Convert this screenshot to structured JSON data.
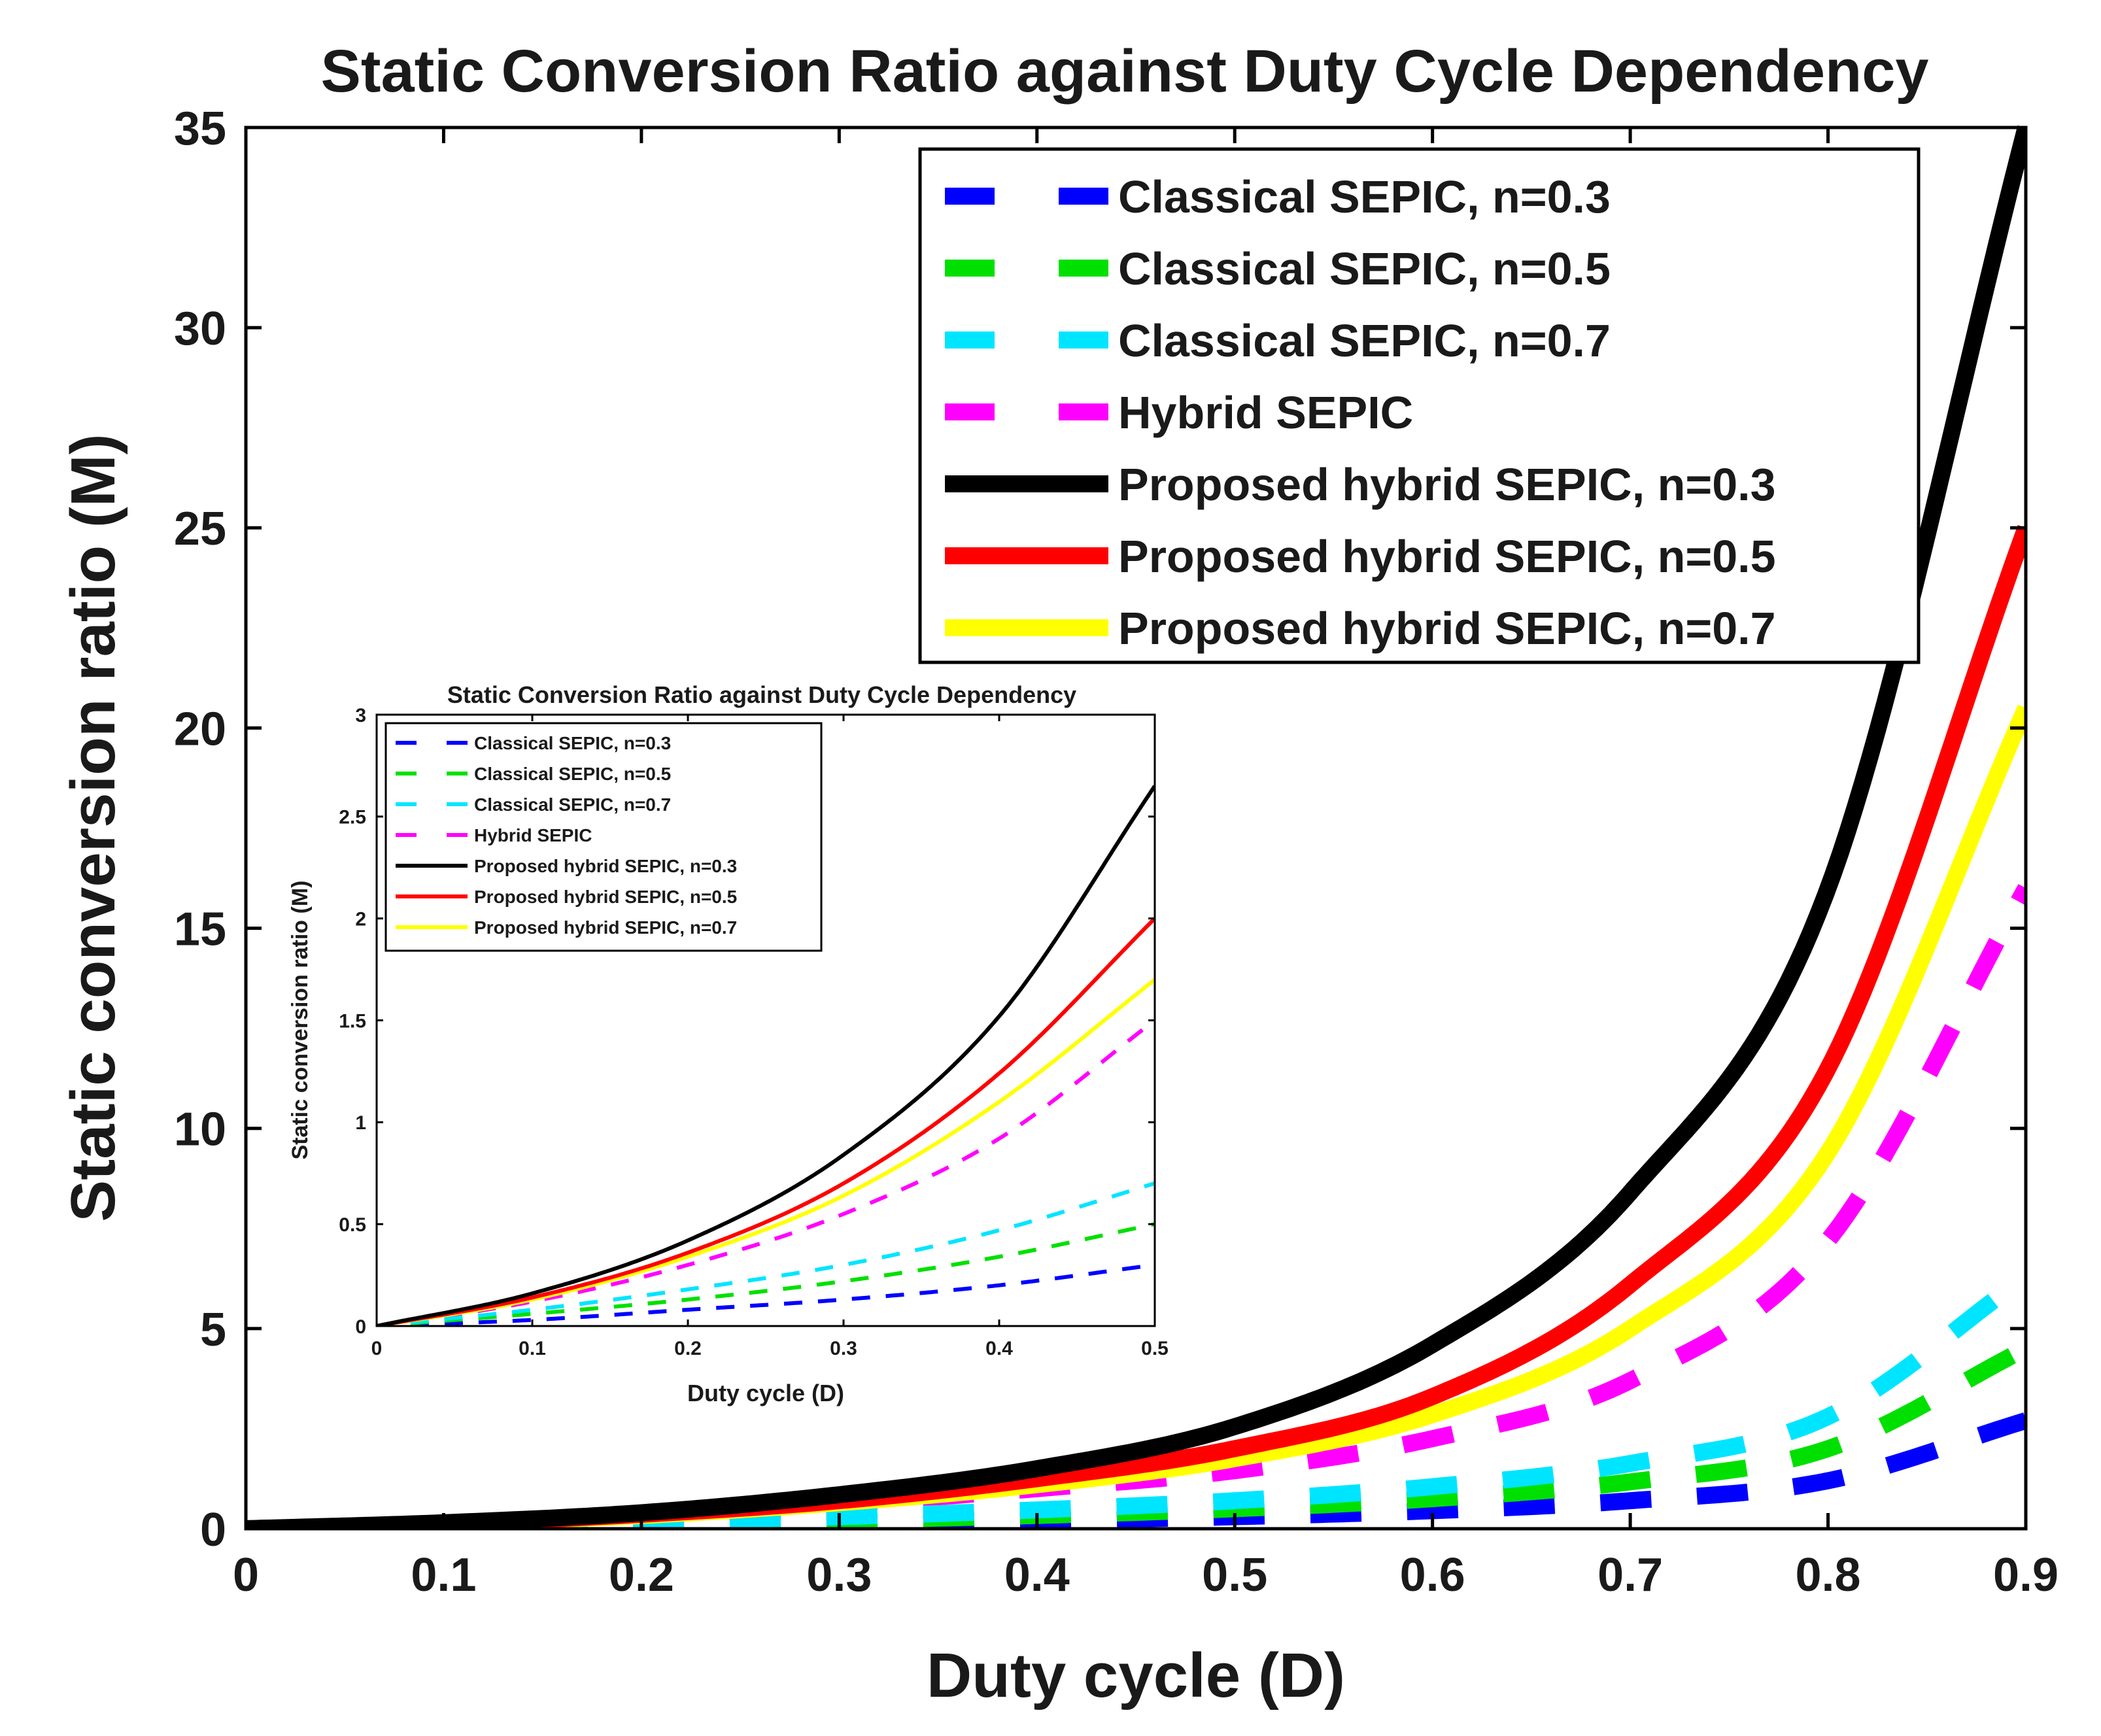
{
  "chart_data": [
    {
      "id": "main",
      "type": "line",
      "title": "Static Conversion Ratio against Duty Cycle Dependency",
      "xlabel": "Duty cycle (D)",
      "ylabel": "Static conversion ratio (M)",
      "xlim": [
        0,
        0.9
      ],
      "ylim": [
        0,
        35
      ],
      "xticks": [
        0,
        0.1,
        0.2,
        0.3,
        0.4,
        0.5,
        0.6,
        0.7,
        0.8,
        0.9
      ],
      "xtick_labels": [
        "0",
        "0.1",
        "0.2",
        "0.3",
        "0.4",
        "0.5",
        "0.6",
        "0.7",
        "0.8",
        "0.9"
      ],
      "yticks": [
        0,
        5,
        10,
        15,
        20,
        25,
        30,
        35
      ],
      "ytick_labels": [
        "0",
        "5",
        "10",
        "15",
        "20",
        "25",
        "30",
        "35"
      ],
      "grid": false,
      "legend_position": "top-right",
      "series": [
        {
          "name": "Classical SEPIC, n=0.3",
          "color": "#0000ff",
          "style": "dashed",
          "x": [
            0.0,
            0.1,
            0.2,
            0.3,
            0.4,
            0.5,
            0.6,
            0.7,
            0.8,
            0.9
          ],
          "values": [
            0.0,
            0.03,
            0.08,
            0.13,
            0.2,
            0.3,
            0.45,
            0.7,
            1.2,
            2.7
          ]
        },
        {
          "name": "Classical SEPIC, n=0.5",
          "color": "#00e000",
          "style": "dashed",
          "x": [
            0.0,
            0.1,
            0.2,
            0.3,
            0.4,
            0.5,
            0.6,
            0.7,
            0.8,
            0.9
          ],
          "values": [
            0.0,
            0.06,
            0.13,
            0.21,
            0.33,
            0.5,
            0.75,
            1.17,
            2.0,
            4.5
          ]
        },
        {
          "name": "Classical SEPIC, n=0.7",
          "color": "#00e5ff",
          "style": "dashed",
          "x": [
            0.0,
            0.1,
            0.2,
            0.3,
            0.4,
            0.5,
            0.6,
            0.7,
            0.8,
            0.9
          ],
          "values": [
            0.0,
            0.08,
            0.18,
            0.3,
            0.47,
            0.7,
            1.05,
            1.63,
            2.8,
            6.3
          ]
        },
        {
          "name": "Hybrid SEPIC",
          "color": "#ff00ff",
          "style": "dashed",
          "x": [
            0.0,
            0.1,
            0.2,
            0.3,
            0.4,
            0.5,
            0.6,
            0.7,
            0.8,
            0.9
          ],
          "values": [
            0.0,
            0.12,
            0.31,
            0.61,
            1.0,
            1.45,
            2.25,
            3.7,
            7.2,
            16.0
          ]
        },
        {
          "name": "Proposed hybrid SEPIC, n=0.3",
          "color": "#000000",
          "style": "solid",
          "x": [
            0.0,
            0.1,
            0.2,
            0.3,
            0.4,
            0.5,
            0.6,
            0.7,
            0.8,
            0.9
          ],
          "values": [
            0.0,
            0.15,
            0.4,
            0.85,
            1.5,
            2.55,
            4.6,
            8.4,
            16.0,
            35.0
          ]
        },
        {
          "name": "Proposed hybrid SEPIC, n=0.5",
          "color": "#ff0000",
          "style": "solid",
          "x": [
            0.0,
            0.1,
            0.2,
            0.3,
            0.4,
            0.5,
            0.6,
            0.7,
            0.8,
            0.9
          ],
          "values": [
            0.0,
            0.13,
            0.36,
            0.7,
            1.25,
            2.0,
            3.3,
            6.1,
            11.5,
            25.0
          ]
        },
        {
          "name": "Proposed hybrid SEPIC, n=0.7",
          "color": "#ffff00",
          "style": "solid",
          "x": [
            0.0,
            0.1,
            0.2,
            0.3,
            0.4,
            0.5,
            0.6,
            0.7,
            0.8,
            0.9
          ],
          "values": [
            0.0,
            0.12,
            0.33,
            0.65,
            1.1,
            1.75,
            2.85,
            5.0,
            9.4,
            20.5
          ]
        }
      ]
    },
    {
      "id": "inset",
      "type": "line",
      "title": "Static Conversion Ratio against Duty Cycle Dependency",
      "xlabel": "Duty cycle (D)",
      "ylabel": "Static conversion ratio (M)",
      "xlim": [
        0,
        0.5
      ],
      "ylim": [
        0,
        3
      ],
      "xticks": [
        0,
        0.1,
        0.2,
        0.3,
        0.4,
        0.5
      ],
      "xtick_labels": [
        "0",
        "0.1",
        "0.2",
        "0.3",
        "0.4",
        "0.5"
      ],
      "yticks": [
        0,
        0.5,
        1,
        1.5,
        2,
        2.5,
        3
      ],
      "ytick_labels": [
        "0",
        "0.5",
        "1",
        "1.5",
        "2",
        "2.5",
        "3"
      ],
      "grid": false,
      "legend_position": "top-left",
      "series": [
        {
          "name": "Classical SEPIC, n=0.3",
          "color": "#0000ff",
          "style": "dashed",
          "x": [
            0.0,
            0.1,
            0.2,
            0.3,
            0.4,
            0.5
          ],
          "values": [
            0.0,
            0.03,
            0.08,
            0.13,
            0.2,
            0.3
          ]
        },
        {
          "name": "Classical SEPIC, n=0.5",
          "color": "#00e000",
          "style": "dashed",
          "x": [
            0.0,
            0.1,
            0.2,
            0.3,
            0.4,
            0.5
          ],
          "values": [
            0.0,
            0.06,
            0.13,
            0.22,
            0.34,
            0.5
          ]
        },
        {
          "name": "Classical SEPIC, n=0.7",
          "color": "#00e5ff",
          "style": "dashed",
          "x": [
            0.0,
            0.1,
            0.2,
            0.3,
            0.4,
            0.5
          ],
          "values": [
            0.0,
            0.08,
            0.18,
            0.3,
            0.47,
            0.7
          ]
        },
        {
          "name": "Hybrid SEPIC",
          "color": "#ff00ff",
          "style": "dashed",
          "x": [
            0.0,
            0.1,
            0.2,
            0.3,
            0.4,
            0.5
          ],
          "values": [
            0.0,
            0.12,
            0.3,
            0.55,
            0.92,
            1.5
          ]
        },
        {
          "name": "Proposed hybrid SEPIC, n=0.3",
          "color": "#000000",
          "style": "solid",
          "x": [
            0.0,
            0.1,
            0.2,
            0.3,
            0.4,
            0.5
          ],
          "values": [
            0.0,
            0.16,
            0.42,
            0.84,
            1.52,
            2.65
          ]
        },
        {
          "name": "Proposed hybrid SEPIC, n=0.5",
          "color": "#ff0000",
          "style": "solid",
          "x": [
            0.0,
            0.1,
            0.2,
            0.3,
            0.4,
            0.5
          ],
          "values": [
            0.0,
            0.14,
            0.36,
            0.7,
            1.24,
            2.0
          ]
        },
        {
          "name": "Proposed hybrid SEPIC, n=0.7",
          "color": "#ffff00",
          "style": "solid",
          "x": [
            0.0,
            0.1,
            0.2,
            0.3,
            0.4,
            0.5
          ],
          "values": [
            0.0,
            0.13,
            0.34,
            0.64,
            1.1,
            1.7
          ]
        }
      ]
    }
  ]
}
